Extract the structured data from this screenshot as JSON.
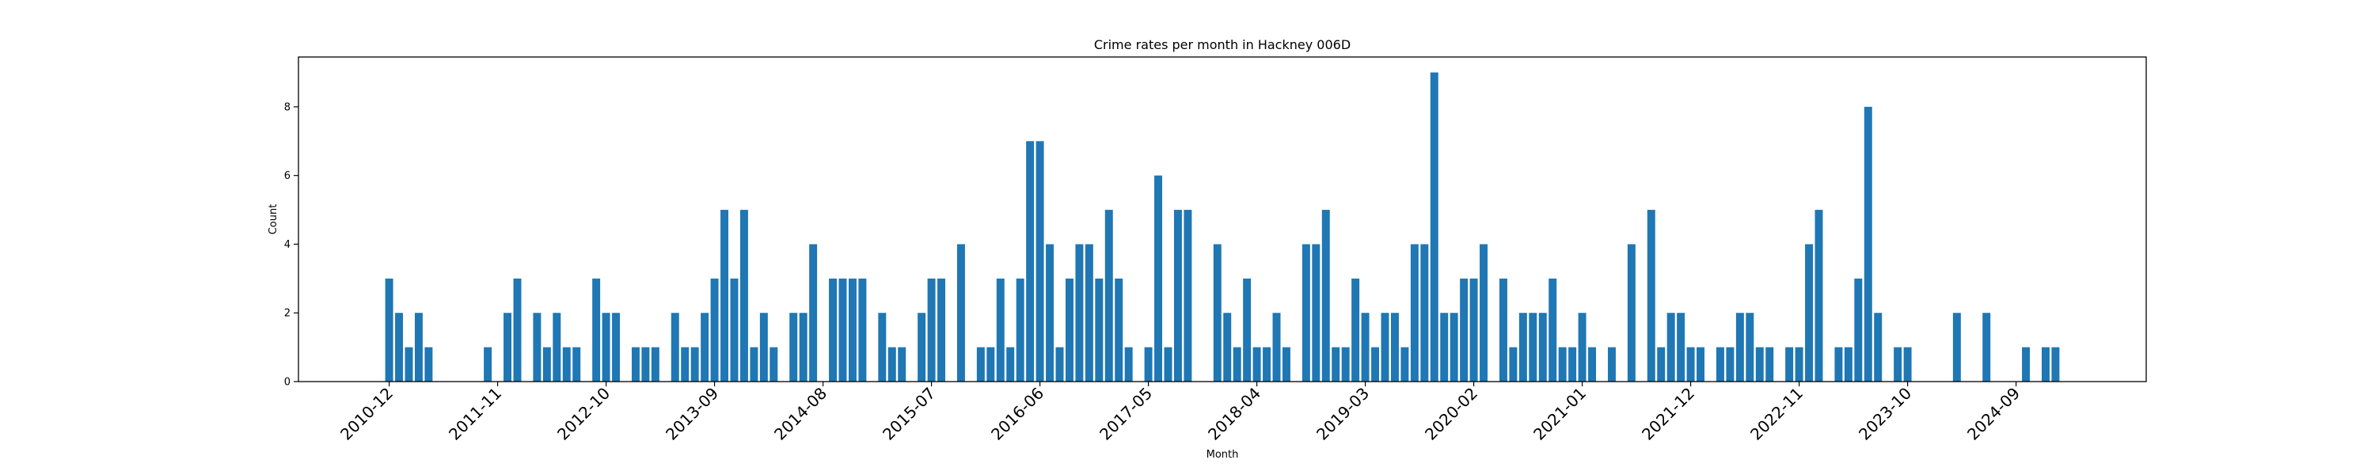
{
  "chart_data": {
    "type": "bar",
    "title": "Crime rates per month in Hackney 006D",
    "xlabel": "Month",
    "ylabel": "Count",
    "ylim": [
      0,
      9.45
    ],
    "y_ticks": [
      0,
      2,
      4,
      6,
      8
    ],
    "x_tick_labels": [
      "2010-12",
      "2011-11",
      "2012-10",
      "2013-09",
      "2014-08",
      "2015-07",
      "2016-06",
      "2017-05",
      "2018-04",
      "2019-03",
      "2020-02",
      "2021-01",
      "2021-12",
      "2022-11",
      "2023-10",
      "2024-09"
    ],
    "bar_color": "#1f77b4",
    "grid": false,
    "categories": [
      "2010-12",
      "2011-01",
      "2011-02",
      "2011-03",
      "2011-04",
      "2011-10",
      "2011-12",
      "2012-01",
      "2012-03",
      "2012-04",
      "2012-05",
      "2012-06",
      "2012-07",
      "2012-09",
      "2012-10",
      "2012-11",
      "2013-01",
      "2013-02",
      "2013-03",
      "2013-05",
      "2013-06",
      "2013-07",
      "2013-08",
      "2013-09",
      "2013-10",
      "2013-11",
      "2013-12",
      "2014-01",
      "2014-02",
      "2014-03",
      "2014-05",
      "2014-06",
      "2014-07",
      "2014-09",
      "2014-10",
      "2014-11",
      "2014-12",
      "2015-02",
      "2015-03",
      "2015-04",
      "2015-06",
      "2015-07",
      "2015-08",
      "2015-10",
      "2015-12",
      "2016-01",
      "2016-02",
      "2016-03",
      "2016-04",
      "2016-05",
      "2016-06",
      "2016-07",
      "2016-08",
      "2016-09",
      "2016-10",
      "2016-11",
      "2016-12",
      "2017-01",
      "2017-02",
      "2017-03",
      "2017-05",
      "2017-06",
      "2017-07",
      "2017-08",
      "2017-09",
      "2017-12",
      "2018-01",
      "2018-02",
      "2018-03",
      "2018-04",
      "2018-05",
      "2018-06",
      "2018-07",
      "2018-09",
      "2018-10",
      "2018-11",
      "2018-12",
      "2019-01",
      "2019-02",
      "2019-03",
      "2019-04",
      "2019-05",
      "2019-06",
      "2019-07",
      "2019-08",
      "2019-09",
      "2019-10",
      "2019-11",
      "2019-12",
      "2020-01",
      "2020-02",
      "2020-03",
      "2020-05",
      "2020-06",
      "2020-07",
      "2020-08",
      "2020-09",
      "2020-10",
      "2020-11",
      "2020-12",
      "2021-01",
      "2021-02",
      "2021-04",
      "2021-06",
      "2021-08",
      "2021-09",
      "2021-10",
      "2021-11",
      "2021-12",
      "2022-01",
      "2022-03",
      "2022-04",
      "2022-05",
      "2022-06",
      "2022-07",
      "2022-08",
      "2022-10",
      "2022-11",
      "2022-12",
      "2023-01",
      "2023-03",
      "2023-04",
      "2023-05",
      "2023-06",
      "2023-07",
      "2023-09",
      "2023-10",
      "2024-03",
      "2024-06",
      "2024-10",
      "2024-12",
      "2025-01"
    ],
    "values": [
      3,
      2,
      1,
      2,
      1,
      1,
      2,
      3,
      2,
      1,
      2,
      1,
      1,
      3,
      2,
      2,
      1,
      1,
      1,
      2,
      1,
      1,
      2,
      3,
      5,
      3,
      5,
      1,
      2,
      1,
      2,
      2,
      4,
      3,
      3,
      3,
      3,
      2,
      1,
      1,
      2,
      3,
      3,
      4,
      1,
      1,
      3,
      1,
      3,
      7,
      7,
      4,
      1,
      3,
      4,
      4,
      3,
      5,
      3,
      1,
      1,
      6,
      1,
      5,
      5,
      4,
      2,
      1,
      3,
      1,
      1,
      2,
      1,
      4,
      4,
      5,
      1,
      1,
      3,
      2,
      1,
      2,
      2,
      1,
      4,
      4,
      9,
      2,
      2,
      3,
      3,
      4,
      3,
      1,
      2,
      2,
      2,
      3,
      1,
      1,
      2,
      1,
      1,
      4,
      5,
      1,
      2,
      2,
      1,
      1,
      1,
      1,
      2,
      2,
      1,
      1,
      1,
      1,
      4,
      5,
      1,
      1,
      3,
      8,
      2,
      1,
      1,
      2,
      2,
      1,
      1,
      1
    ]
  }
}
